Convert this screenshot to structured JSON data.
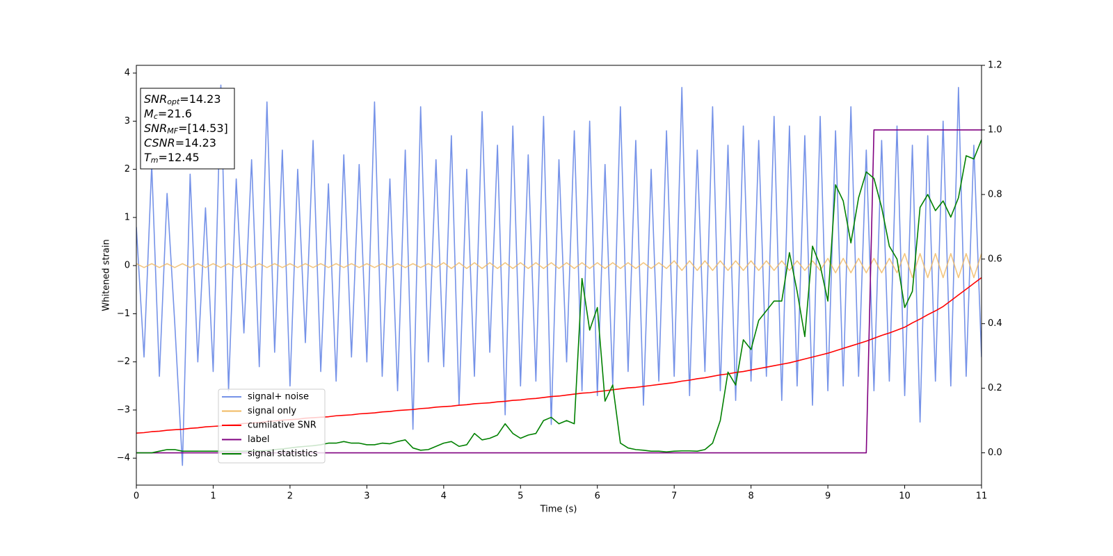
{
  "chart_data": {
    "type": "line",
    "xlabel": "Time (s)",
    "ylabel": "Whitened strain",
    "xlim": [
      0,
      11
    ],
    "ylim": [
      -4.56,
      4.16
    ],
    "y2lim": [
      -0.1,
      1.2
    ],
    "xticks": [
      0,
      1,
      2,
      3,
      4,
      5,
      6,
      7,
      8,
      9,
      10,
      11
    ],
    "yticks": [
      {
        "value": -4,
        "label": "−4"
      },
      {
        "value": -3,
        "label": "−3"
      },
      {
        "value": -2,
        "label": "−2"
      },
      {
        "value": -1,
        "label": "−1"
      },
      0,
      1,
      2,
      3,
      4
    ],
    "y2ticks": [
      {
        "value": 0,
        "label": "0.0"
      },
      0.2,
      0.4,
      0.6,
      0.8,
      {
        "value": 1,
        "label": "1.0"
      },
      1.2
    ],
    "annotations": [
      {
        "name": "SNR",
        "sub": "opt",
        "value": "=14.23"
      },
      {
        "name": "M",
        "sub": "c",
        "value": "=21.6"
      },
      {
        "name": "SNR",
        "sub": "MF",
        "value": "=[14.53]"
      },
      {
        "name": "CSNR",
        "value": "=14.23"
      },
      {
        "name": "T",
        "sub": "m",
        "value": "=12.45"
      }
    ],
    "x": [
      0,
      0.1,
      0.2,
      0.3,
      0.4,
      0.5,
      0.6,
      0.7,
      0.8,
      0.9,
      1,
      1.1,
      1.2,
      1.3,
      1.4,
      1.5,
      1.6,
      1.7,
      1.8,
      1.9,
      2,
      2.1,
      2.2,
      2.3,
      2.4,
      2.5,
      2.6,
      2.7,
      2.8,
      2.9,
      3,
      3.1,
      3.2,
      3.3,
      3.4,
      3.5,
      3.6,
      3.7,
      3.8,
      3.9,
      4,
      4.1,
      4.2,
      4.3,
      4.4,
      4.5,
      4.6,
      4.7,
      4.8,
      4.9,
      5,
      5.1,
      5.2,
      5.3,
      5.4,
      5.5,
      5.6,
      5.7,
      5.8,
      5.9,
      6,
      6.1,
      6.2,
      6.3,
      6.4,
      6.5,
      6.6,
      6.7,
      6.8,
      6.9,
      7,
      7.1,
      7.2,
      7.3,
      7.4,
      7.5,
      7.6,
      7.7,
      7.8,
      7.9,
      8,
      8.1,
      8.2,
      8.3,
      8.4,
      8.5,
      8.6,
      8.7,
      8.8,
      8.9,
      9,
      9.1,
      9.2,
      9.3,
      9.4,
      9.5,
      9.6,
      9.7,
      9.8,
      9.9,
      10,
      10.1,
      10.2,
      10.3,
      10.4,
      10.5,
      10.6,
      10.7,
      10.8,
      10.9,
      11
    ],
    "series": [
      {
        "name": "signal+ noise",
        "color": "#7592e8",
        "values": [
          0.8,
          -1.9,
          2.1,
          -2.3,
          1.5,
          -1.2,
          -4.15,
          1.9,
          -2.0,
          1.2,
          -2.2,
          3.75,
          -2.6,
          1.8,
          -1.4,
          2.2,
          -2.1,
          3.4,
          -1.8,
          2.4,
          -2.5,
          2.0,
          -1.6,
          2.6,
          -2.2,
          1.7,
          -2.4,
          2.3,
          -1.9,
          2.1,
          -2.0,
          3.4,
          -2.3,
          1.8,
          -2.6,
          2.4,
          -3.4,
          3.3,
          -2.0,
          2.2,
          -2.1,
          2.7,
          -2.9,
          2.0,
          -2.3,
          3.2,
          -1.8,
          2.5,
          -3.1,
          2.9,
          -2.5,
          2.3,
          -2.4,
          3.1,
          -3.3,
          2.2,
          -2.0,
          2.8,
          -2.6,
          3.0,
          -2.7,
          2.1,
          -2.5,
          3.3,
          -2.2,
          2.6,
          -2.9,
          2.0,
          -2.4,
          2.8,
          -2.3,
          3.7,
          -2.7,
          2.4,
          -2.2,
          3.3,
          -2.6,
          2.5,
          -2.8,
          2.9,
          -2.4,
          2.6,
          -2.3,
          3.1,
          -2.8,
          2.9,
          -2.5,
          2.7,
          -2.9,
          3.1,
          -2.6,
          2.8,
          -2.5,
          3.3,
          -2.3,
          2.4,
          -2.6,
          2.6,
          -2.4,
          2.9,
          -2.7,
          2.5,
          -3.25,
          2.7,
          -2.4,
          3.0,
          -2.5,
          3.7,
          -2.3,
          2.5,
          -1.9
        ]
      },
      {
        "name": "signal only",
        "color": "#f0b860",
        "values": [
          0.04,
          -0.04,
          0.04,
          -0.04,
          0.04,
          -0.04,
          0.04,
          -0.04,
          0.04,
          -0.04,
          0.04,
          -0.04,
          0.04,
          -0.04,
          0.04,
          -0.04,
          0.04,
          -0.04,
          0.04,
          -0.04,
          0.04,
          -0.04,
          0.04,
          -0.04,
          0.04,
          -0.04,
          0.04,
          -0.04,
          0.04,
          -0.04,
          0.04,
          -0.04,
          0.04,
          -0.04,
          0.04,
          -0.04,
          0.04,
          -0.04,
          0.04,
          -0.04,
          0.06,
          -0.06,
          0.06,
          -0.06,
          0.06,
          -0.06,
          0.06,
          -0.06,
          0.06,
          -0.06,
          0.06,
          -0.06,
          0.06,
          -0.06,
          0.06,
          -0.06,
          0.06,
          -0.06,
          0.06,
          -0.06,
          0.06,
          -0.06,
          0.06,
          -0.06,
          0.06,
          -0.06,
          0.06,
          -0.06,
          0.06,
          -0.06,
          0.1,
          -0.1,
          0.1,
          -0.1,
          0.1,
          -0.1,
          0.1,
          -0.1,
          0.1,
          -0.1,
          0.1,
          -0.1,
          0.1,
          -0.1,
          0.1,
          -0.1,
          0.1,
          -0.1,
          0.1,
          -0.1,
          0.15,
          -0.15,
          0.15,
          -0.15,
          0.15,
          -0.15,
          0.15,
          -0.15,
          0.15,
          -0.15,
          0.25,
          -0.25,
          0.25,
          -0.25,
          0.25,
          -0.25,
          0.25,
          -0.25,
          0.25,
          -0.25,
          0.25
        ]
      },
      {
        "name": "cumilative SNR",
        "color": "#ff0000",
        "values": [
          -3.48,
          -3.47,
          -3.45,
          -3.44,
          -3.42,
          -3.41,
          -3.4,
          -3.38,
          -3.37,
          -3.35,
          -3.34,
          -3.33,
          -3.31,
          -3.3,
          -3.28,
          -3.27,
          -3.26,
          -3.24,
          -3.23,
          -3.21,
          -3.2,
          -3.19,
          -3.17,
          -3.16,
          -3.15,
          -3.14,
          -3.12,
          -3.11,
          -3.1,
          -3.08,
          -3.07,
          -3.06,
          -3.04,
          -3.03,
          -3.01,
          -3.0,
          -2.99,
          -2.97,
          -2.96,
          -2.94,
          -2.93,
          -2.92,
          -2.9,
          -2.89,
          -2.87,
          -2.86,
          -2.85,
          -2.83,
          -2.82,
          -2.8,
          -2.79,
          -2.77,
          -2.76,
          -2.74,
          -2.72,
          -2.71,
          -2.69,
          -2.67,
          -2.65,
          -2.64,
          -2.62,
          -2.6,
          -2.58,
          -2.56,
          -2.54,
          -2.53,
          -2.51,
          -2.49,
          -2.47,
          -2.45,
          -2.43,
          -2.4,
          -2.38,
          -2.35,
          -2.33,
          -2.3,
          -2.27,
          -2.25,
          -2.22,
          -2.2,
          -2.17,
          -2.14,
          -2.11,
          -2.08,
          -2.05,
          -2.02,
          -1.98,
          -1.94,
          -1.9,
          -1.86,
          -1.82,
          -1.77,
          -1.72,
          -1.67,
          -1.62,
          -1.57,
          -1.51,
          -1.45,
          -1.4,
          -1.34,
          -1.28,
          -1.19,
          -1.11,
          -1.02,
          -0.94,
          -0.85,
          -0.73,
          -0.61,
          -0.49,
          -0.37,
          -0.25
        ]
      },
      {
        "name": "label",
        "color": "#800080",
        "axis": "y2",
        "values": [
          0,
          0,
          0,
          0,
          0,
          0,
          0,
          0,
          0,
          0,
          0,
          0,
          0,
          0,
          0,
          0,
          0,
          0,
          0,
          0,
          0,
          0,
          0,
          0,
          0,
          0,
          0,
          0,
          0,
          0,
          0,
          0,
          0,
          0,
          0,
          0,
          0,
          0,
          0,
          0,
          0,
          0,
          0,
          0,
          0,
          0,
          0,
          0,
          0,
          0,
          0,
          0,
          0,
          0,
          0,
          0,
          0,
          0,
          0,
          0,
          0,
          0,
          0,
          0,
          0,
          0,
          0,
          0,
          0,
          0,
          0,
          0,
          0,
          0,
          0,
          0,
          0,
          0,
          0,
          0,
          0,
          0,
          0,
          0,
          0,
          0,
          0,
          0,
          0,
          0,
          0,
          0,
          0,
          0,
          0,
          0,
          1,
          1,
          1,
          1,
          1,
          1,
          1,
          1,
          1,
          1,
          1,
          1,
          1,
          1,
          1
        ]
      },
      {
        "name": "signal statistics",
        "color": "#008000",
        "axis": "y2",
        "values": [
          0.0,
          0.0,
          0.0,
          0.005,
          0.01,
          0.01,
          0.005,
          0.005,
          0.005,
          0.005,
          0.005,
          0.005,
          0.005,
          0.005,
          0.005,
          0.006,
          0.006,
          0.007,
          0.01,
          0.012,
          0.015,
          0.018,
          0.02,
          0.022,
          0.025,
          0.03,
          0.03,
          0.035,
          0.03,
          0.03,
          0.025,
          0.025,
          0.03,
          0.028,
          0.035,
          0.04,
          0.015,
          0.008,
          0.01,
          0.02,
          0.03,
          0.035,
          0.02,
          0.025,
          0.06,
          0.04,
          0.045,
          0.055,
          0.09,
          0.06,
          0.045,
          0.055,
          0.06,
          0.1,
          0.11,
          0.09,
          0.1,
          0.09,
          0.54,
          0.38,
          0.45,
          0.16,
          0.21,
          0.03,
          0.015,
          0.01,
          0.008,
          0.005,
          0.005,
          0.003,
          0.005,
          0.006,
          0.006,
          0.005,
          0.01,
          0.03,
          0.1,
          0.25,
          0.21,
          0.35,
          0.32,
          0.41,
          0.44,
          0.47,
          0.47,
          0.62,
          0.5,
          0.36,
          0.64,
          0.58,
          0.47,
          0.83,
          0.78,
          0.65,
          0.79,
          0.87,
          0.85,
          0.76,
          0.64,
          0.6,
          0.45,
          0.5,
          0.76,
          0.8,
          0.75,
          0.78,
          0.73,
          0.79,
          0.92,
          0.91,
          0.97
        ]
      }
    ]
  }
}
